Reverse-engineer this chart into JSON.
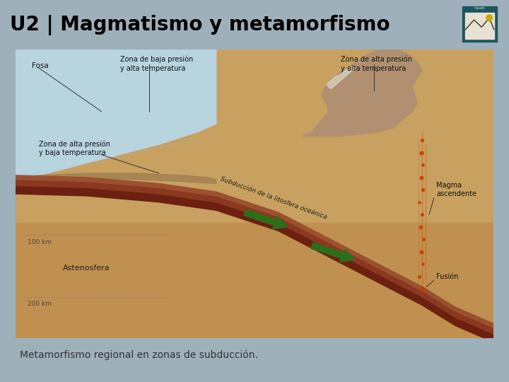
{
  "title": "U2 | Magmatismo y metamorfismo",
  "caption": "Metamorfismo regional en zonas de subducción.",
  "header_bg": "#2e8a96",
  "header_text_color": "#000000",
  "body_bg": "#9eb0ba",
  "image_frame_bg": "#ffffff",
  "caption_text_color": "#333333",
  "title_fontsize": 20,
  "caption_fontsize": 10,
  "labels": {
    "fosa": "Fosa",
    "zona_baja_presion": "Zona de baja presión\ny alta temperatura",
    "zona_alta_presion_alta": "Zona de alta presión\ny alta temperatura",
    "zona_alta_presion_baja": "Zona de alta presión\ny baja temperatura",
    "subduccion": "Subducción de la litosfera oceánica",
    "astenosfera": "Astenosfera",
    "magma": "Magma\nascendente",
    "fusion": "Fusión",
    "100km": "100 km",
    "200km": "200 km"
  },
  "ocean_color": "#b8d4df",
  "continent_color": "#c8a060",
  "mantle_color": "#c8a060",
  "asthenosphere_color": "#c09050",
  "slab_dark": "#6b2010",
  "slab_mid": "#8b3820",
  "slab_light": "#9b5030",
  "arrow_color": "#2d6e1a",
  "magma_color": "#cc3800",
  "mountain_rock": "#b09070",
  "mountain_green": "#8a9a60",
  "snow_color": "#d8d8c8",
  "line_color": "#555555",
  "seafloor_color": "#a08050"
}
